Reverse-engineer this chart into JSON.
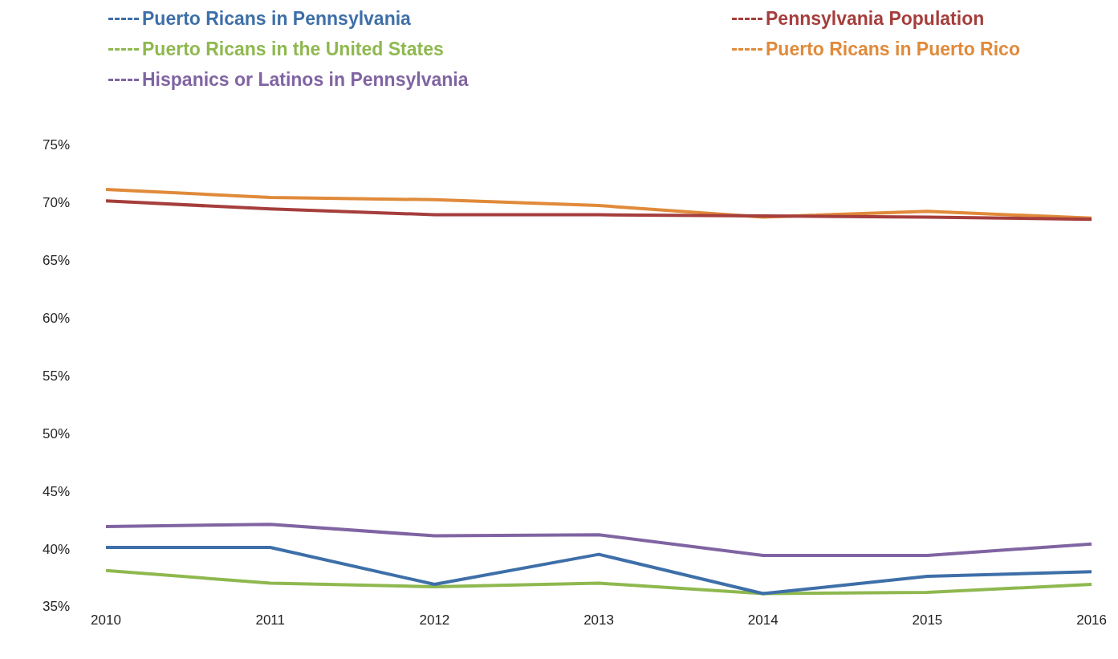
{
  "chart_data": {
    "type": "line",
    "categories": [
      "2010",
      "2011",
      "2012",
      "2013",
      "2014",
      "2015",
      "2016"
    ],
    "series": [
      {
        "name": "Puerto Ricans in Pennsylvania",
        "color": "#3e6fa8",
        "values": [
          40.2,
          40.2,
          37.0,
          39.6,
          36.2,
          37.7,
          38.1
        ]
      },
      {
        "name": "Pennsylvania Population",
        "color": "#a53e3c",
        "values": [
          70.2,
          69.5,
          69.0,
          69.0,
          68.9,
          68.8,
          68.6
        ]
      },
      {
        "name": "Puerto Ricans in the United States",
        "color": "#8fb84f",
        "values": [
          38.2,
          37.1,
          36.8,
          37.1,
          36.2,
          36.3,
          37.0
        ]
      },
      {
        "name": "Puerto Ricans in Puerto Rico",
        "color": "#e08a3a",
        "values": [
          71.2,
          70.5,
          70.3,
          69.8,
          68.8,
          69.3,
          68.7
        ]
      },
      {
        "name": "Hispanics or Latinos in Pennsylvania",
        "color": "#8064a2",
        "values": [
          42.0,
          42.2,
          41.2,
          41.3,
          39.5,
          39.5,
          40.5
        ]
      }
    ],
    "ylim": [
      35,
      75
    ],
    "yticks": [
      {
        "value": 35,
        "label": "35%"
      },
      {
        "value": 40,
        "label": "40%"
      },
      {
        "value": 45,
        "label": "45%"
      },
      {
        "value": 50,
        "label": "50%"
      },
      {
        "value": 55,
        "label": "55%"
      },
      {
        "value": 60,
        "label": "60%"
      },
      {
        "value": 65,
        "label": "65%"
      },
      {
        "value": 70,
        "label": "70%"
      },
      {
        "value": 75,
        "label": "75%"
      }
    ],
    "legend": "top",
    "marker": "none",
    "line_style": "solid"
  }
}
